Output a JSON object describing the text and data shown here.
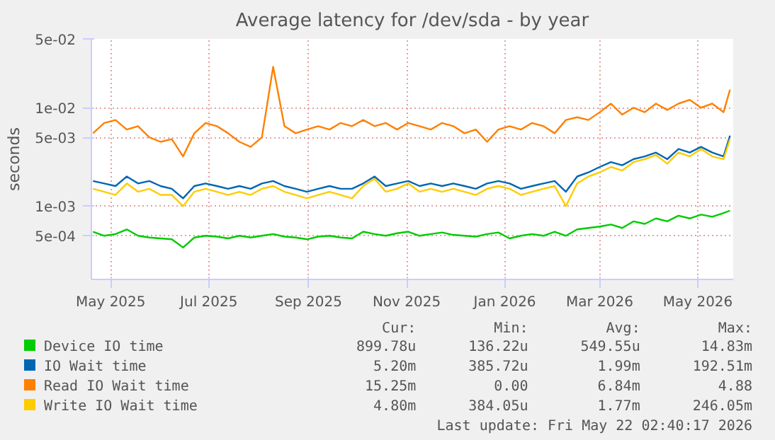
{
  "chart_data": {
    "type": "line",
    "title": "Average latency for /dev/sda - by year",
    "ylabel": "seconds",
    "log": "y",
    "grid": true,
    "legend": "bottom",
    "x": [
      "2025-04-20",
      "2025-04-27",
      "2025-05-04",
      "2025-05-11",
      "2025-05-18",
      "2025-05-25",
      "2025-06-01",
      "2025-06-08",
      "2025-06-15",
      "2025-06-22",
      "2025-06-29",
      "2025-07-06",
      "2025-07-13",
      "2025-07-20",
      "2025-07-27",
      "2025-08-03",
      "2025-08-10",
      "2025-08-17",
      "2025-08-24",
      "2025-08-31",
      "2025-09-07",
      "2025-09-14",
      "2025-09-21",
      "2025-09-28",
      "2025-10-05",
      "2025-10-12",
      "2025-10-19",
      "2025-10-26",
      "2025-11-02",
      "2025-11-09",
      "2025-11-16",
      "2025-11-23",
      "2025-11-30",
      "2025-12-07",
      "2025-12-14",
      "2025-12-21",
      "2025-12-28",
      "2026-01-04",
      "2026-01-11",
      "2026-01-18",
      "2026-01-25",
      "2026-02-01",
      "2026-02-08",
      "2026-02-15",
      "2026-02-22",
      "2026-03-01",
      "2026-03-08",
      "2026-03-15",
      "2026-03-22",
      "2026-03-29",
      "2026-04-05",
      "2026-04-12",
      "2026-04-19",
      "2026-04-26",
      "2026-05-03",
      "2026-05-10",
      "2026-05-17",
      "2026-05-21"
    ],
    "xlim": [
      "2025-04-19",
      "2026-05-23"
    ],
    "xticks": [
      {
        "value": "2025-05-01",
        "label": "May 2025"
      },
      {
        "value": "2025-07-01",
        "label": "Jul 2025"
      },
      {
        "value": "2025-09-01",
        "label": "Sep 2025"
      },
      {
        "value": "2025-11-01",
        "label": "Nov 2025"
      },
      {
        "value": "2026-01-01",
        "label": "Jan 2026"
      },
      {
        "value": "2026-03-01",
        "label": "Mar 2026"
      },
      {
        "value": "2026-05-01",
        "label": "May 2026"
      }
    ],
    "ylim": [
      0.00018,
      0.05
    ],
    "yticks": [
      {
        "value": 0.0005,
        "label": "5e-04"
      },
      {
        "value": 0.001,
        "label": "1e-03"
      },
      {
        "value": 0.005,
        "label": "5e-03"
      },
      {
        "value": 0.01,
        "label": "1e-02"
      },
      {
        "value": 0.05,
        "label": "5e-02"
      }
    ],
    "series": [
      {
        "name": "Device IO time",
        "color": "#00cc00",
        "values": [
          0.00055,
          0.0005,
          0.00052,
          0.00058,
          0.0005,
          0.00048,
          0.00047,
          0.00046,
          0.00038,
          0.00048,
          0.0005,
          0.00049,
          0.00047,
          0.0005,
          0.00048,
          0.0005,
          0.00052,
          0.00049,
          0.00048,
          0.00046,
          0.00049,
          0.0005,
          0.00048,
          0.00047,
          0.00055,
          0.00052,
          0.0005,
          0.00053,
          0.00055,
          0.0005,
          0.00052,
          0.00054,
          0.00051,
          0.0005,
          0.00049,
          0.00052,
          0.00054,
          0.00047,
          0.0005,
          0.00052,
          0.0005,
          0.00055,
          0.0005,
          0.00058,
          0.0006,
          0.00062,
          0.00065,
          0.0006,
          0.0007,
          0.00066,
          0.00075,
          0.0007,
          0.0008,
          0.00075,
          0.00082,
          0.00078,
          0.00085,
          0.0009
        ]
      },
      {
        "name": "IO Wait time",
        "color": "#0066b3",
        "values": [
          0.0018,
          0.0017,
          0.0016,
          0.002,
          0.0017,
          0.0018,
          0.0016,
          0.0015,
          0.0012,
          0.0016,
          0.0017,
          0.0016,
          0.0015,
          0.0016,
          0.0015,
          0.0017,
          0.0018,
          0.0016,
          0.0015,
          0.0014,
          0.0015,
          0.0016,
          0.0015,
          0.0015,
          0.0017,
          0.002,
          0.0016,
          0.0017,
          0.0018,
          0.0016,
          0.0017,
          0.0016,
          0.0017,
          0.0016,
          0.0015,
          0.0017,
          0.0018,
          0.0017,
          0.0015,
          0.0016,
          0.0017,
          0.0018,
          0.0014,
          0.002,
          0.0022,
          0.0025,
          0.0028,
          0.0026,
          0.003,
          0.0032,
          0.0035,
          0.003,
          0.0038,
          0.0035,
          0.004,
          0.0035,
          0.0032,
          0.0052
        ]
      },
      {
        "name": "Read IO Wait time",
        "color": "#ff8000",
        "values": [
          0.0055,
          0.007,
          0.0075,
          0.006,
          0.0065,
          0.005,
          0.0045,
          0.0048,
          0.0032,
          0.0055,
          0.007,
          0.0065,
          0.0055,
          0.0045,
          0.004,
          0.005,
          0.026,
          0.0065,
          0.0055,
          0.006,
          0.0065,
          0.006,
          0.007,
          0.0065,
          0.0075,
          0.0065,
          0.007,
          0.006,
          0.007,
          0.0065,
          0.006,
          0.007,
          0.0065,
          0.0055,
          0.006,
          0.0045,
          0.006,
          0.0065,
          0.006,
          0.007,
          0.0065,
          0.0055,
          0.0075,
          0.008,
          0.0075,
          0.009,
          0.011,
          0.0085,
          0.01,
          0.009,
          0.011,
          0.0095,
          0.011,
          0.012,
          0.01,
          0.011,
          0.009,
          0.01525
        ]
      },
      {
        "name": "Write IO Wait time",
        "color": "#ffcc00",
        "values": [
          0.0015,
          0.0014,
          0.0013,
          0.0017,
          0.0014,
          0.0015,
          0.0013,
          0.0013,
          0.001,
          0.0014,
          0.0015,
          0.0014,
          0.0013,
          0.0014,
          0.0013,
          0.0015,
          0.0016,
          0.0014,
          0.0013,
          0.0012,
          0.0013,
          0.0014,
          0.0013,
          0.0012,
          0.0016,
          0.0019,
          0.0014,
          0.0015,
          0.0017,
          0.0014,
          0.0015,
          0.0014,
          0.0015,
          0.0014,
          0.0013,
          0.0015,
          0.0016,
          0.0015,
          0.0013,
          0.0014,
          0.0015,
          0.0016,
          0.001,
          0.0017,
          0.002,
          0.0022,
          0.0025,
          0.0023,
          0.0028,
          0.003,
          0.0033,
          0.0027,
          0.0035,
          0.0032,
          0.0038,
          0.0032,
          0.003,
          0.0048
        ]
      }
    ],
    "annotations": [
      "Cur:",
      "Min:",
      "Avg:",
      "Max:",
      "899.78u",
      "136.22u",
      "549.55u",
      "14.83m",
      "5.20m",
      "385.72u",
      "1.99m",
      "192.51m",
      "15.25m",
      "0.00",
      "6.84m",
      "4.88",
      "4.80m",
      "384.05u",
      "1.77m",
      "246.05m",
      "Last update: Fri May 22 02:40:17 2026"
    ]
  }
}
